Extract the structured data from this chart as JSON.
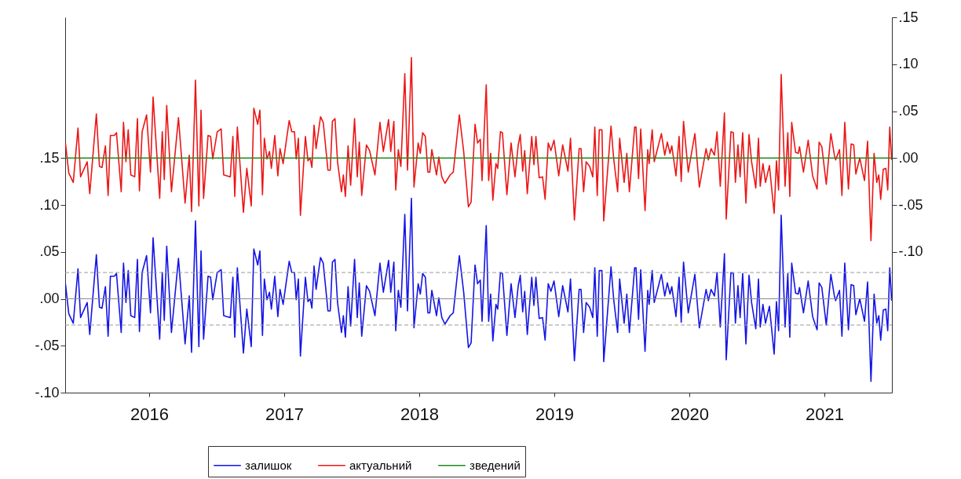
{
  "chart_data": {
    "type": "line",
    "x": [
      2015.88,
      2015.905,
      2015.938,
      2015.973,
      2015.992,
      2016.041,
      2016.06,
      2016.109,
      2016.132,
      2016.151,
      2016.176,
      2016.196,
      2016.213,
      2016.242,
      2016.258,
      2016.293,
      2016.31,
      2016.328,
      2016.345,
      2016.364,
      2016.393,
      2016.413,
      2016.428,
      2016.448,
      2016.481,
      2016.51,
      2016.529,
      2016.578,
      2016.597,
      2016.612,
      2016.63,
      2016.665,
      2016.717,
      2016.766,
      2016.797,
      2016.814,
      2016.843,
      2016.868,
      2016.884,
      2016.903,
      2016.936,
      2016.955,
      2016.971,
      2017.004,
      2017.033,
      2017.052,
      2017.101,
      2017.12,
      2017.134,
      2017.153,
      2017.198,
      2017.223,
      2017.256,
      2017.275,
      2017.304,
      2017.32,
      2017.339,
      2017.353,
      2017.372,
      2017.391,
      2017.405,
      2017.43,
      2017.453,
      2017.469,
      2017.492,
      2017.537,
      2017.556,
      2017.576,
      2017.589,
      2017.605,
      2017.62,
      2017.657,
      2017.676,
      2017.692,
      2017.705,
      2017.721,
      2017.736,
      2017.769,
      2017.789,
      2017.824,
      2017.841,
      2017.857,
      2017.876,
      2017.895,
      2017.924,
      2017.938,
      2017.953,
      2017.973,
      2017.992,
      2018.021,
      2018.041,
      2018.056,
      2018.074,
      2018.109,
      2018.132,
      2018.172,
      2018.209,
      2018.234,
      2018.273,
      2018.289,
      2018.312,
      2018.326,
      2018.345,
      2018.364,
      2018.393,
      2018.413,
      2018.442,
      2018.461,
      2018.492,
      2018.508,
      2018.525,
      2018.545,
      2018.564,
      2018.578,
      2018.593,
      2018.628,
      2018.645,
      2018.667,
      2018.69,
      2018.729,
      2018.752,
      2018.797,
      2018.829,
      2018.864,
      2018.884,
      2018.913,
      2018.932,
      2018.952,
      2018.965,
      2018.996,
      2019.014,
      2019.029,
      2019.045,
      2019.068,
      2019.081,
      2019.101,
      2019.116,
      2019.149,
      2019.18,
      2019.209,
      2019.233,
      2019.248,
      2019.266,
      2019.281,
      2019.3,
      2019.333,
      2019.349,
      2019.364,
      2019.388,
      2019.413,
      2019.432,
      2019.455,
      2019.475,
      2019.498,
      2019.533,
      2019.562,
      2019.601,
      2019.62,
      2019.649,
      2019.684,
      2019.698,
      2019.717,
      2019.736,
      2019.762,
      2019.785,
      2019.8,
      2019.818,
      2019.833,
      2019.853,
      2019.866,
      2019.92,
      2019.94,
      2019.969,
      2019.984,
      2020.017,
      2020.037,
      2020.056,
      2020.095,
      2020.105,
      2020.124,
      2020.14,
      2020.172,
      2020.192,
      2020.202,
      2020.225,
      2020.24,
      2020.293,
      2020.318,
      2020.337,
      2020.357,
      2020.37,
      2020.401,
      2020.424,
      2020.44,
      2020.457,
      2020.492,
      2020.541,
      2020.574,
      2020.624,
      2020.641,
      2020.661,
      2020.686,
      2020.705,
      2020.729,
      2020.76,
      2020.773,
      2020.808,
      2020.826,
      2020.841,
      2020.86,
      2020.876,
      2020.895,
      2020.919,
      2020.942,
      2020.961,
      2020.992,
      2021.012,
      2021.025,
      2021.045,
      2021.064,
      2021.093,
      2021.128,
      2021.145,
      2021.161,
      2021.18,
      2021.209,
      2021.229,
      2021.244,
      2021.258,
      2021.287,
      2021.306,
      2021.316,
      2021.345,
      2021.38,
      2021.413,
      2021.446,
      2021.461,
      2021.481,
      2021.514,
      2021.548,
      2021.574,
      2021.583,
      2021.612,
      2021.63,
      2021.651,
      2021.678,
      2021.698,
      2021.717,
      2021.733,
      2021.762,
      2021.797,
      2021.82,
      2021.845,
      2021.868,
      2021.888,
      2021.903,
      2021.917,
      2021.936,
      2021.955,
      2021.969,
      2021.984,
      2021.998
    ],
    "series": [
      {
        "name": "залишок",
        "color": "#1414e6",
        "values": [
          0.016,
          -0.016,
          -0.026,
          0.032,
          -0.02,
          -0.004,
          -0.038,
          0.047,
          -0.009,
          -0.01,
          0.013,
          -0.04,
          0.024,
          0.024,
          0.027,
          -0.036,
          0.038,
          -0.004,
          0.03,
          -0.018,
          -0.02,
          0.042,
          -0.035,
          0.028,
          0.046,
          -0.015,
          0.065,
          -0.043,
          0.028,
          -0.023,
          0.056,
          -0.036,
          0.043,
          -0.048,
          0.003,
          -0.057,
          0.083,
          -0.051,
          0.051,
          -0.043,
          0.024,
          0.023,
          -0.001,
          0.028,
          0.031,
          -0.018,
          -0.02,
          0.023,
          -0.041,
          0.033,
          -0.058,
          -0.011,
          -0.051,
          0.053,
          0.036,
          0.051,
          -0.039,
          0.021,
          -0.001,
          0.007,
          -0.011,
          0.024,
          -0.019,
          0.01,
          -0.006,
          0.04,
          0.028,
          0.028,
          -0.001,
          0.021,
          -0.061,
          0.023,
          -0.003,
          0.0,
          -0.01,
          0.035,
          0.01,
          0.044,
          0.038,
          -0.013,
          -0.013,
          0.039,
          0.042,
          -0.004,
          -0.036,
          -0.018,
          -0.041,
          0.013,
          -0.029,
          0.042,
          -0.02,
          0.017,
          -0.04,
          0.014,
          0.008,
          -0.018,
          0.038,
          0.007,
          0.041,
          0.007,
          0.039,
          -0.034,
          0.009,
          -0.009,
          0.09,
          -0.013,
          0.107,
          -0.031,
          0.016,
          0.005,
          0.027,
          0.023,
          -0.015,
          -0.015,
          0.009,
          -0.018,
          0.001,
          -0.02,
          -0.027,
          -0.018,
          -0.015,
          0.046,
          0.007,
          -0.052,
          -0.047,
          0.036,
          0.016,
          0.02,
          -0.024,
          0.078,
          -0.024,
          0.005,
          -0.045,
          -0.006,
          -0.011,
          0.028,
          0.027,
          -0.039,
          0.016,
          -0.02,
          0.014,
          0.025,
          -0.014,
          0.008,
          -0.038,
          0.023,
          -0.007,
          0.023,
          -0.021,
          -0.02,
          -0.044,
          0.016,
          0.008,
          0.019,
          -0.019,
          0.014,
          -0.014,
          0.021,
          -0.066,
          0.01,
          0.01,
          -0.036,
          -0.004,
          -0.009,
          -0.02,
          0.033,
          -0.04,
          0.03,
          0.03,
          -0.067,
          0.034,
          -0.001,
          -0.036,
          0.021,
          -0.026,
          0.005,
          -0.036,
          0.033,
          0.033,
          -0.022,
          0.031,
          -0.056,
          0.009,
          -0.006,
          0.03,
          -0.004,
          0.026,
          0.003,
          0.017,
          0.005,
          0.013,
          -0.019,
          0.023,
          -0.025,
          0.039,
          -0.015,
          0.026,
          -0.031,
          0.01,
          -0.002,
          0.01,
          0.003,
          0.028,
          -0.03,
          0.048,
          -0.065,
          0.028,
          0.027,
          -0.026,
          0.014,
          -0.02,
          0.027,
          -0.048,
          0.025,
          -0.004,
          -0.032,
          0.021,
          -0.03,
          -0.006,
          -0.026,
          -0.008,
          -0.059,
          -0.003,
          -0.034,
          0.089,
          -0.03,
          0.027,
          -0.041,
          0.038,
          0.006,
          0.005,
          0.012,
          -0.015,
          0.019,
          -0.019,
          -0.033,
          0.017,
          0.012,
          -0.028,
          0.026,
          0.003,
          -0.002,
          0.009,
          -0.04,
          0.038,
          -0.033,
          0.015,
          0.014,
          -0.017,
          0.0,
          -0.024,
          0.018,
          -0.088,
          0.005,
          -0.026,
          -0.018,
          -0.044,
          -0.012,
          -0.011,
          -0.034,
          0.033,
          -0.002
        ]
      },
      {
        "name": "актуальний",
        "color": "#ec1616",
        "axis": "y2",
        "values": [
          0.016,
          -0.016,
          -0.026,
          0.032,
          -0.02,
          -0.004,
          -0.038,
          0.047,
          -0.009,
          -0.01,
          0.013,
          -0.04,
          0.024,
          0.024,
          0.027,
          -0.036,
          0.038,
          -0.004,
          0.03,
          -0.018,
          -0.02,
          0.042,
          -0.035,
          0.028,
          0.046,
          -0.015,
          0.065,
          -0.043,
          0.028,
          -0.023,
          0.056,
          -0.036,
          0.043,
          -0.048,
          0.003,
          -0.057,
          0.083,
          -0.051,
          0.051,
          -0.043,
          0.024,
          0.023,
          -0.001,
          0.028,
          0.031,
          -0.018,
          -0.02,
          0.023,
          -0.041,
          0.033,
          -0.058,
          -0.011,
          -0.051,
          0.053,
          0.036,
          0.051,
          -0.039,
          0.021,
          -0.001,
          0.007,
          -0.011,
          0.024,
          -0.019,
          0.01,
          -0.006,
          0.04,
          0.028,
          0.028,
          -0.001,
          0.021,
          -0.061,
          0.023,
          -0.003,
          0.0,
          -0.01,
          0.035,
          0.01,
          0.044,
          0.038,
          -0.013,
          -0.013,
          0.039,
          0.042,
          -0.004,
          -0.036,
          -0.018,
          -0.041,
          0.013,
          -0.029,
          0.042,
          -0.02,
          0.017,
          -0.04,
          0.014,
          0.008,
          -0.018,
          0.038,
          0.007,
          0.041,
          0.007,
          0.039,
          -0.034,
          0.009,
          -0.009,
          0.09,
          -0.013,
          0.107,
          -0.031,
          0.016,
          0.005,
          0.027,
          0.023,
          -0.015,
          -0.015,
          0.009,
          -0.018,
          0.001,
          -0.02,
          -0.027,
          -0.018,
          -0.015,
          0.046,
          0.007,
          -0.052,
          -0.047,
          0.036,
          0.016,
          0.02,
          -0.024,
          0.078,
          -0.024,
          0.005,
          -0.045,
          -0.006,
          -0.011,
          0.028,
          0.027,
          -0.039,
          0.016,
          -0.02,
          0.014,
          0.025,
          -0.014,
          0.008,
          -0.038,
          0.023,
          -0.007,
          0.023,
          -0.021,
          -0.02,
          -0.044,
          0.016,
          0.008,
          0.019,
          -0.019,
          0.014,
          -0.014,
          0.021,
          -0.066,
          0.01,
          0.01,
          -0.036,
          -0.004,
          -0.009,
          -0.02,
          0.033,
          -0.04,
          0.03,
          0.03,
          -0.067,
          0.034,
          -0.001,
          -0.036,
          0.021,
          -0.026,
          0.005,
          -0.036,
          0.033,
          0.033,
          -0.022,
          0.031,
          -0.056,
          0.009,
          -0.006,
          0.03,
          -0.004,
          0.026,
          0.003,
          0.017,
          0.005,
          0.013,
          -0.019,
          0.023,
          -0.025,
          0.039,
          -0.015,
          0.026,
          -0.031,
          0.01,
          -0.002,
          0.01,
          0.003,
          0.028,
          -0.03,
          0.048,
          -0.065,
          0.028,
          0.027,
          -0.026,
          0.014,
          -0.02,
          0.027,
          -0.048,
          0.025,
          -0.004,
          -0.032,
          0.021,
          -0.03,
          -0.006,
          -0.026,
          -0.008,
          -0.059,
          -0.003,
          -0.034,
          0.089,
          -0.03,
          0.027,
          -0.041,
          0.038,
          0.006,
          0.005,
          0.012,
          -0.015,
          0.019,
          -0.019,
          -0.033,
          0.017,
          0.012,
          -0.028,
          0.026,
          0.003,
          -0.002,
          0.009,
          -0.04,
          0.038,
          -0.033,
          0.015,
          0.014,
          -0.017,
          0.0,
          -0.024,
          0.018,
          -0.088,
          0.005,
          -0.026,
          -0.018,
          -0.044,
          -0.012,
          -0.011,
          -0.034,
          0.033,
          -0.002
        ]
      },
      {
        "name": "зведений",
        "color": "#1f8c1f",
        "axis": "y2",
        "x": [
          2015.88,
          2021.998
        ],
        "values": [
          0.0,
          0.0
        ]
      }
    ],
    "xlim": [
      2015.878,
      2022.0
    ],
    "xticks": [
      {
        "value": 2016.5,
        "label": "2016"
      },
      {
        "value": 2017.5,
        "label": "2017"
      },
      {
        "value": 2018.5,
        "label": "2018"
      },
      {
        "value": 2019.5,
        "label": "2019"
      },
      {
        "value": 2020.5,
        "label": "2020"
      },
      {
        "value": 2021.5,
        "label": "2021"
      }
    ],
    "ylim": [
      -0.1,
      0.3
    ],
    "yticks": [
      {
        "value": -0.1,
        "label": "-.10"
      },
      {
        "value": -0.05,
        "label": "-.05"
      },
      {
        "value": 0,
        "label": ".00"
      },
      {
        "value": 0.05,
        "label": ".05"
      },
      {
        "value": 0.1,
        "label": ".10"
      },
      {
        "value": 0.15,
        "label": ".15"
      }
    ],
    "y2lim": [
      -0.25,
      0.15
    ],
    "y2ticks": [
      {
        "value": -0.1,
        "label": "-.10"
      },
      {
        "value": -0.05,
        "label": "-.05"
      },
      {
        "value": 0,
        "label": ".00"
      },
      {
        "value": 0.05,
        "label": ".05"
      },
      {
        "value": 0.1,
        "label": ".10"
      },
      {
        "value": 0.15,
        "label": ".15"
      }
    ],
    "ref_lines": [
      {
        "axis": "y",
        "value": 0,
        "color": "#8c8c8c",
        "line_style": "solid"
      },
      {
        "axis": "y",
        "value": 0.028,
        "color": "#9a9a9a",
        "line_style": "dashed"
      },
      {
        "axis": "y",
        "value": -0.028,
        "color": "#9a9a9a",
        "line_style": "dashed"
      }
    ],
    "legend": "bottom",
    "grid": false
  }
}
